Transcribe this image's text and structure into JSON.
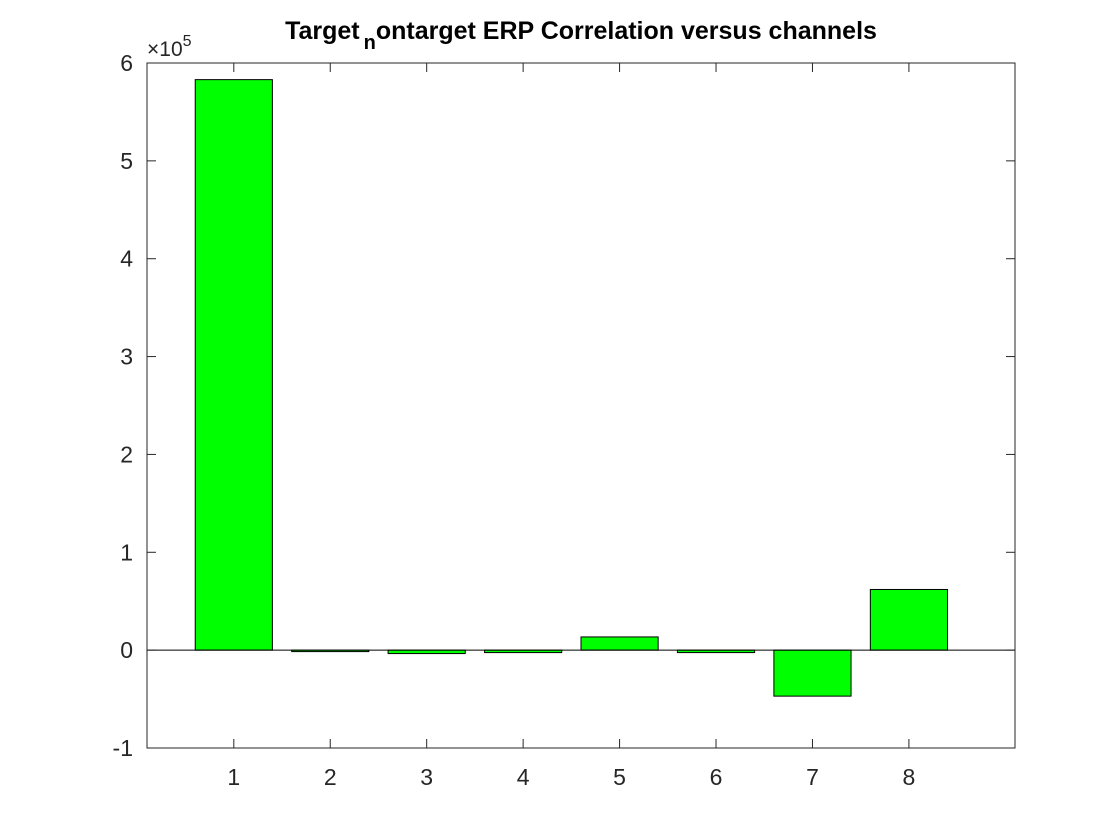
{
  "chart_data": {
    "type": "bar",
    "title": {
      "main": "Target",
      "subscript": "n",
      "rest": "ontarget ERP Correlation versus channels"
    },
    "xlabel": "",
    "ylabel": "",
    "categories": [
      "1",
      "2",
      "3",
      "4",
      "5",
      "6",
      "7",
      "8"
    ],
    "values": [
      583000,
      -1500,
      -3500,
      -2500,
      13500,
      -2500,
      -47000,
      62000
    ],
    "ylim": [
      -100000,
      600000
    ],
    "xlim": [
      0.1,
      9.1
    ],
    "y_ticks": [
      -100000,
      0,
      100000,
      200000,
      300000,
      400000,
      500000,
      600000
    ],
    "y_tick_labels": [
      "-1",
      "0",
      "1",
      "2",
      "3",
      "4",
      "5",
      "6"
    ],
    "y_exponent": {
      "prefix": "×10",
      "power": "5"
    },
    "bar_color": "#00ff00",
    "bar_edge_color": "#000000",
    "axis_color": "#262626",
    "grid": false,
    "legend": "none",
    "box": true
  }
}
